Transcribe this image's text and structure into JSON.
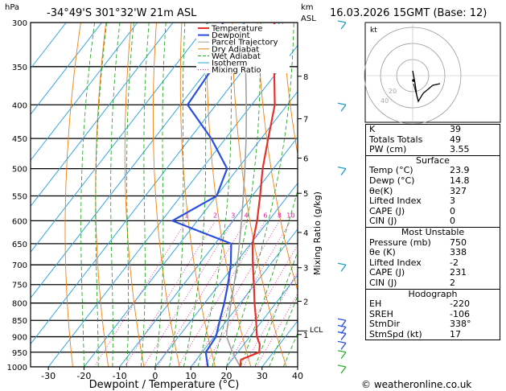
{
  "header": {
    "location": "-34°49'S  301°32'W  21m  ASL",
    "datetime": "16.03.2026  15GMT  (Base: 12)",
    "hpa_label": "hPa",
    "km_label": "km",
    "asl_label": "ASL"
  },
  "chart_data": {
    "type": "line",
    "title": "Skew-T log-P sounding",
    "xlabel": "Dewpoint / Temperature (°C)",
    "ylabel_right": "Mixing Ratio (g/kg)",
    "xlim": [
      -35,
      40
    ],
    "ylim_hpa": [
      1000,
      300
    ],
    "skew_deg_per_decade": 75,
    "x_ticks": [
      -30,
      -20,
      -10,
      0,
      10,
      20,
      30,
      40
    ],
    "pressure_levels": [
      300,
      350,
      400,
      450,
      500,
      550,
      600,
      650,
      700,
      750,
      800,
      850,
      900,
      950,
      1000
    ],
    "km_ticks": [
      {
        "km": 8,
        "p": 362
      },
      {
        "km": 7,
        "p": 420
      },
      {
        "km": 6,
        "p": 482
      },
      {
        "km": 5,
        "p": 545
      },
      {
        "km": 4,
        "p": 625
      },
      {
        "km": 3,
        "p": 707
      },
      {
        "km": 2,
        "p": 795
      },
      {
        "km": 1,
        "p": 893
      }
    ],
    "lcl": {
      "label": "LCL",
      "p": 882
    },
    "mixing_ratio_labels": [
      "1",
      "2",
      "3",
      "4",
      "6",
      "8",
      "10",
      "15",
      "20",
      "25"
    ],
    "mixing_ratio_values": [
      1,
      2,
      3,
      4,
      6,
      8,
      10,
      15,
      20,
      25
    ],
    "legend": [
      "Temperature",
      "Dewpoint",
      "Parcel Trajectory",
      "Dry Adiabat",
      "Wet Adiabat",
      "Isotherm",
      "Mixing Ratio"
    ],
    "colors": {
      "temperature": "#e8302a",
      "dewpoint": "#2a4fe0",
      "parcel": "#a0a0a0",
      "dry_adiabat": "#f08010",
      "wet_adiabat": "#10a010",
      "isotherm": "#20a0e0",
      "mixing_ratio": "#e020a0"
    },
    "series": [
      {
        "name": "Temperature",
        "points": [
          {
            "p": 1000,
            "t": 23.9
          },
          {
            "p": 975,
            "t": 22.5
          },
          {
            "p": 950,
            "t": 26.0
          },
          {
            "p": 925,
            "t": 24.5
          },
          {
            "p": 900,
            "t": 22.0
          },
          {
            "p": 850,
            "t": 18.2
          },
          {
            "p": 800,
            "t": 14.0
          },
          {
            "p": 750,
            "t": 9.8
          },
          {
            "p": 700,
            "t": 5.2
          },
          {
            "p": 650,
            "t": 0.5
          },
          {
            "p": 600,
            "t": -3.2
          },
          {
            "p": 550,
            "t": -7.8
          },
          {
            "p": 500,
            "t": -13.0
          },
          {
            "p": 450,
            "t": -18.0
          },
          {
            "p": 400,
            "t": -23.5
          },
          {
            "p": 350,
            "t": -32.0
          },
          {
            "p": 300,
            "t": -41.5
          }
        ]
      },
      {
        "name": "Dewpoint",
        "points": [
          {
            "p": 1000,
            "t": 14.8
          },
          {
            "p": 950,
            "t": 11.0
          },
          {
            "p": 900,
            "t": 10.5
          },
          {
            "p": 850,
            "t": 8.0
          },
          {
            "p": 800,
            "t": 5.5
          },
          {
            "p": 750,
            "t": 2.5
          },
          {
            "p": 700,
            "t": -1.0
          },
          {
            "p": 650,
            "t": -5.5
          },
          {
            "p": 600,
            "t": -27.0
          },
          {
            "p": 550,
            "t": -20.0
          },
          {
            "p": 500,
            "t": -23.0
          },
          {
            "p": 450,
            "t": -34.0
          },
          {
            "p": 400,
            "t": -48.0
          },
          {
            "p": 350,
            "t": -49.0
          },
          {
            "p": 300,
            "t": -56.0
          }
        ]
      },
      {
        "name": "Parcel Trajectory",
        "points": [
          {
            "p": 1000,
            "t": 23.9
          },
          {
            "p": 950,
            "t": 18.5
          },
          {
            "p": 900,
            "t": 13.5
          },
          {
            "p": 882,
            "t": 12.3
          },
          {
            "p": 850,
            "t": 10.4
          },
          {
            "p": 800,
            "t": 7.4
          },
          {
            "p": 750,
            "t": 4.2
          },
          {
            "p": 700,
            "t": 0.8
          },
          {
            "p": 650,
            "t": -3.2
          },
          {
            "p": 600,
            "t": -7.6
          },
          {
            "p": 550,
            "t": -12.5
          },
          {
            "p": 500,
            "t": -18.0
          },
          {
            "p": 450,
            "t": -24.2
          },
          {
            "p": 400,
            "t": -31.5
          },
          {
            "p": 350,
            "t": -40.0
          },
          {
            "p": 300,
            "t": -50.0
          }
        ]
      }
    ],
    "wind_barbs_hpa": [
      300,
      400,
      500,
      700,
      850,
      870,
      890,
      920,
      950,
      1000
    ]
  },
  "hodograph": {
    "unit_label": "kt",
    "ring_labels": [
      "20",
      "40"
    ]
  },
  "indices": {
    "rows": [
      {
        "k": "K",
        "v": "39"
      },
      {
        "k": "Totals Totals",
        "v": "49"
      },
      {
        "k": "PW (cm)",
        "v": "3.55"
      }
    ]
  },
  "surface": {
    "title": "Surface",
    "rows": [
      {
        "k": "Temp (°C)",
        "v": "23.9"
      },
      {
        "k": "Dewp (°C)",
        "v": "14.8"
      },
      {
        "k": "θe(K)",
        "v": "327"
      },
      {
        "k": "Lifted Index",
        "v": "3"
      },
      {
        "k": "CAPE (J)",
        "v": "0"
      },
      {
        "k": "CIN (J)",
        "v": "0"
      }
    ]
  },
  "most_unstable": {
    "title": "Most Unstable",
    "rows": [
      {
        "k": "Pressure (mb)",
        "v": "750"
      },
      {
        "k": "θe (K)",
        "v": "338"
      },
      {
        "k": "Lifted Index",
        "v": "-2"
      },
      {
        "k": "CAPE (J)",
        "v": "231"
      },
      {
        "k": "CIN (J)",
        "v": "2"
      }
    ]
  },
  "hodograph_table": {
    "title": "Hodograph",
    "rows": [
      {
        "k": "EH",
        "v": "-220"
      },
      {
        "k": "SREH",
        "v": "-106"
      },
      {
        "k": "StmDir",
        "v": "338°"
      },
      {
        "k": "StmSpd (kt)",
        "v": "17"
      }
    ]
  },
  "footer": {
    "copyright": "© weatheronline.co.uk"
  }
}
